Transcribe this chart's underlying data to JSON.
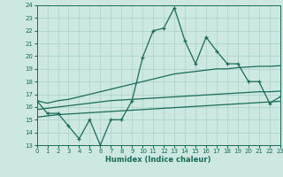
{
  "xlabel": "Humidex (Indice chaleur)",
  "bg_color": "#cce8e0",
  "grid_color": "#b0d4cc",
  "line_color": "#1a6b5a",
  "xmin": 0,
  "xmax": 23,
  "ymin": 13,
  "ymax": 24,
  "x_data": [
    0,
    1,
    2,
    3,
    4,
    5,
    6,
    7,
    8,
    9,
    10,
    11,
    12,
    13,
    14,
    15,
    16,
    17,
    18,
    19,
    20,
    21,
    22,
    23
  ],
  "main_line": [
    16.5,
    15.5,
    15.5,
    14.5,
    13.5,
    15.0,
    13.0,
    15.0,
    15.0,
    16.5,
    19.9,
    22.0,
    22.2,
    23.8,
    21.2,
    19.4,
    21.5,
    20.4,
    19.4,
    19.4,
    18.0,
    18.0,
    16.3,
    16.8
  ],
  "upper_line": [
    16.5,
    16.3,
    16.5,
    16.6,
    16.8,
    17.0,
    17.2,
    17.4,
    17.6,
    17.8,
    18.0,
    18.2,
    18.4,
    18.6,
    18.7,
    18.8,
    18.9,
    19.0,
    19.0,
    19.1,
    19.15,
    19.2,
    19.2,
    19.25
  ],
  "mid_line": [
    15.8,
    15.9,
    16.0,
    16.1,
    16.2,
    16.3,
    16.4,
    16.5,
    16.55,
    16.6,
    16.65,
    16.7,
    16.75,
    16.8,
    16.85,
    16.9,
    16.95,
    17.0,
    17.05,
    17.1,
    17.15,
    17.2,
    17.2,
    17.25
  ],
  "lower_line": [
    15.2,
    15.3,
    15.4,
    15.45,
    15.5,
    15.55,
    15.6,
    15.65,
    15.7,
    15.75,
    15.8,
    15.85,
    15.9,
    15.95,
    16.0,
    16.05,
    16.1,
    16.15,
    16.2,
    16.25,
    16.3,
    16.35,
    16.4,
    16.45
  ]
}
